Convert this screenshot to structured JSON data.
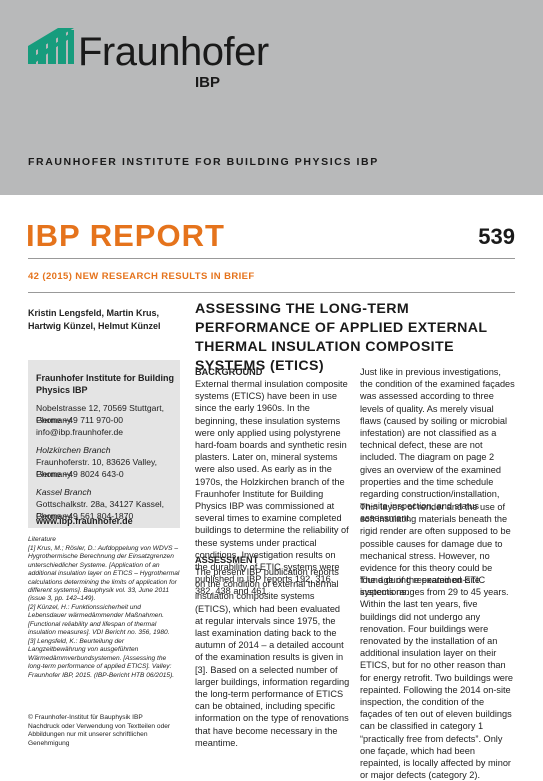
{
  "header": {
    "brand": "Fraunhofer",
    "brand_sub": "IBP",
    "institute": "FRAUNHOFER INSTITUTE FOR BUILDING PHYSICS IBP"
  },
  "report": {
    "title": "IBP REPORT",
    "number": "539",
    "subtitle": "42 (2015) NEW RESEARCH RESULTS IN BRIEF"
  },
  "authors": "Kristin Lengsfeld, Martin Krus, Hartwig Künzel, Helmut Künzel",
  "contact": {
    "name": "Fraunhofer Institute for Building Physics IBP",
    "address": "Nobelstrasse 12, 70569 Stuttgart, Germany",
    "phone": "Phone +49 711 970-00",
    "email": "info@ibp.fraunhofer.de",
    "branches": [
      {
        "name": "Holzkirchen Branch",
        "address": "Fraunhoferstr. 10, 83626 Valley, Germany",
        "phone": "Phone +49 8024 643-0"
      },
      {
        "name": "Kassel Branch",
        "address": "Gottschalkstr. 28a, 34127 Kassel, Germany",
        "phone": "Phone +49 561 804-1870"
      }
    ],
    "web": "www.ibp.fraunhofer.de"
  },
  "literature": {
    "heading": "Literature",
    "items": [
      "[1] Krus, M.; Rösler, D.: Aufdoppelung von WDVS – Hygrothermische Berechnung der Einsatzgrenzen unterschiedlicher Systeme. [Application of an additional insulation layer on ETICS – Hygrothermal calculations determining the limits of application for different systems]. Bauphysik vol. 33, June 2011 (issue 3, pp. 142–149).",
      "[2] Künzel, H.: Funktionssicherheit und Lebensdauer wärmedämmender Maßnahmen. [Functional reliability and lifespan of thermal insulation measures]. VDI Bericht no. 356, 1980.",
      "[3] Lengsfeld, K.: Beurteilung der Langzeitbewährung von ausgeführten Wärmedämmverbundsystemen. [Assessing the long-term performance of applied ETICS]. Valley: Fraunhofer IBP, 2015. (IBP-Bericht HTB 06/2015)."
    ]
  },
  "copyright": [
    "© Fraunhofer-Institut für Bauphysik IBP",
    "Nachdruck oder Verwendung von Textteilen oder Abbildungen nur mit unserer schriftlichen Genehmigung"
  ],
  "article": {
    "title": "ASSESSING THE LONG-TERM PERFORMANCE OF APPLIED EXTERNAL THERMAL INSULATION COMPOSITE SYSTEMS (ETICS)",
    "sections": [
      {
        "heading": "BACKGROUND",
        "text": "External thermal insulation composite systems (ETICS) have been in use since the early 1960s. In the beginning, these insulation systems were only applied using polystyrene hard-foam boards and synthetic resin plasters. Later on, mineral systems were also used. As early as in the 1970s, the Holzkirchen branch of the Fraunhofer Institute for Building Physics IBP was commissioned at several times to examine completed buildings to determine the reliability of these systems under practical conditions. Investigation results on the durability of ETIC systems were published in IBP reports 192, 316, 382, 438 and 461."
      },
      {
        "heading": "ASSESSMENT",
        "text": "The present IBP publication reports on the condition of external thermal insulation composite systems (ETICS), which had been evaluated at regular intervals since 1975, the last examination dating back to the autumn of 2014 – a detailed account of the examination results is given in [3]. Based on a selected number of larger buildings, information regarding the long-term performance of ETICS can be obtained, including specific information on the type of renovations that have become necessary in the meantime."
      }
    ],
    "paragraphs": [
      "Just like in previous investigations, the condition of the examined façades was assessed according to three levels of quality. As merely visual flaws (caused by soiling or microbial infestation) are not classified as a technical defect, these are not included. The diagram on page 2 gives an overview of the examined properties and the time schedule regarding construction/installation, on-site inspection, and status assessment.",
      "Thin layers of render and the use of soft insulating materials beneath the rigid render are often supposed to be possible causes for damage due to mechanical stress. However, no evidence for this theory could be found during repeated on-site inspections.",
      "The age of the examined ETIC systems ranges from 29 to 45 years. Within the last ten years, five buildings did not undergo any renovation. Four buildings were renovated by the installation of an additional insulation layer on their ETICS, but for no other reason than for energy retrofit. Two buildings were repainted. Following the 2014 on-site inspection, the condition of the façades of ten out of eleven buildings can be classified in category 1 “practically free from defects”. Only one façade, which had been repainted, is locally affected by minor or major defects (category 2)."
    ]
  }
}
